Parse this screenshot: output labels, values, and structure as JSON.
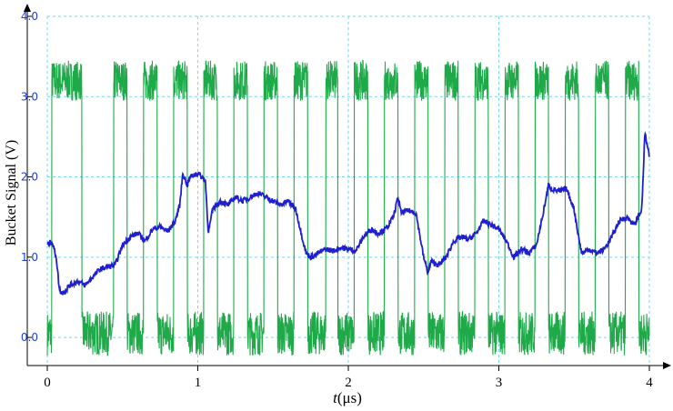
{
  "chart_data": {
    "type": "line",
    "title": "",
    "xlabel_t": "t",
    "xlabel_unit": "(μs)",
    "ylabel": "Bucket Signal (V)",
    "xlim": [
      0,
      4
    ],
    "ylim": [
      -0.35,
      4.0
    ],
    "x_ticks": [
      "0",
      "1",
      "2",
      "3",
      "4"
    ],
    "y_ticks": [
      "0.0",
      "1.0",
      "2.0",
      "3.0",
      "4.0"
    ],
    "y_tick_values": [
      0,
      1,
      2,
      3,
      4
    ],
    "grid": true,
    "colors": {
      "reference": "#1faa4a",
      "bucket": "#1f1fd0",
      "grid": "#7fd3e6",
      "ytick": "#1f3fd6"
    },
    "series": [
      {
        "key": "reference",
        "low": 0.05,
        "high": 3.2,
        "pulses": [
          [
            0.03,
            0.23
          ],
          [
            0.44,
            0.53
          ],
          [
            0.64,
            0.73
          ],
          [
            0.84,
            0.93
          ],
          [
            1.04,
            1.13
          ],
          [
            1.24,
            1.33
          ],
          [
            1.44,
            1.53
          ],
          [
            1.64,
            1.73
          ],
          [
            1.85,
            1.93
          ],
          [
            2.04,
            2.13
          ],
          [
            2.24,
            2.33
          ],
          [
            2.44,
            2.53
          ],
          [
            2.64,
            2.73
          ],
          [
            2.84,
            2.93
          ],
          [
            3.04,
            3.13
          ],
          [
            3.24,
            3.33
          ],
          [
            3.44,
            3.53
          ],
          [
            3.64,
            3.73
          ],
          [
            3.84,
            3.93
          ]
        ]
      },
      {
        "key": "bucket",
        "x": [
          0,
          0.03,
          0.06,
          0.08,
          0.1,
          0.15,
          0.2,
          0.25,
          0.3,
          0.35,
          0.4,
          0.45,
          0.5,
          0.55,
          0.6,
          0.65,
          0.7,
          0.75,
          0.8,
          0.85,
          0.88,
          0.9,
          0.93,
          0.95,
          1.0,
          1.05,
          1.07,
          1.1,
          1.15,
          1.2,
          1.25,
          1.3,
          1.35,
          1.4,
          1.45,
          1.5,
          1.55,
          1.6,
          1.65,
          1.7,
          1.72,
          1.75,
          1.8,
          1.85,
          1.9,
          1.95,
          2.0,
          2.05,
          2.1,
          2.15,
          2.2,
          2.25,
          2.3,
          2.33,
          2.35,
          2.4,
          2.45,
          2.5,
          2.53,
          2.55,
          2.6,
          2.65,
          2.7,
          2.75,
          2.8,
          2.85,
          2.9,
          2.95,
          3.0,
          3.05,
          3.1,
          3.15,
          3.2,
          3.25,
          3.3,
          3.33,
          3.35,
          3.4,
          3.45,
          3.5,
          3.53,
          3.55,
          3.6,
          3.65,
          3.7,
          3.75,
          3.8,
          3.85,
          3.9,
          3.95,
          3.97,
          4.0
        ],
        "y": [
          1.15,
          1.2,
          1.0,
          0.6,
          0.55,
          0.65,
          0.7,
          0.65,
          0.75,
          0.85,
          0.88,
          0.9,
          1.15,
          1.25,
          1.3,
          1.2,
          1.35,
          1.38,
          1.32,
          1.45,
          1.65,
          2.05,
          1.9,
          2.0,
          2.05,
          1.95,
          1.3,
          1.6,
          1.7,
          1.65,
          1.75,
          1.7,
          1.75,
          1.8,
          1.75,
          1.7,
          1.65,
          1.7,
          1.6,
          1.2,
          1.05,
          1.0,
          1.05,
          1.1,
          1.08,
          1.12,
          1.1,
          1.08,
          1.25,
          1.35,
          1.3,
          1.35,
          1.5,
          1.75,
          1.55,
          1.58,
          1.55,
          1.0,
          0.8,
          0.95,
          0.9,
          1.0,
          1.2,
          1.25,
          1.22,
          1.3,
          1.45,
          1.4,
          1.35,
          1.2,
          1.0,
          1.1,
          1.05,
          1.15,
          1.6,
          1.9,
          1.85,
          1.82,
          1.85,
          1.6,
          1.25,
          1.05,
          1.1,
          1.05,
          1.1,
          1.25,
          1.45,
          1.5,
          1.4,
          1.6,
          2.55,
          2.25
        ]
      }
    ]
  }
}
